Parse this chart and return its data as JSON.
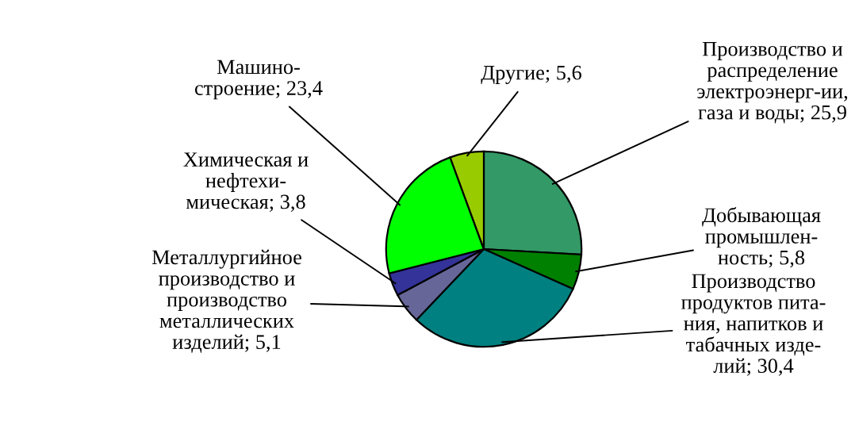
{
  "chart_data": {
    "type": "pie",
    "categories": [
      "Производство и\nраспределение\nэлектроэнерг-ии,\nгаза и воды",
      "Добывающая\nпромышлен-\nность",
      "Производство\nпродуктов пита-\nния, напитков и\nтабачных изде-\nлий",
      "Металлургийное\nпроизводство и\nпроизводство\nметаллических\nизделий",
      "Химическая и\nнефтехи-\nмическая",
      "Машино-\nстроение",
      "Другие"
    ],
    "values": [
      25.9,
      5.8,
      30.4,
      5.1,
      3.8,
      23.4,
      5.6
    ],
    "value_labels": [
      "25,9",
      "5,8",
      "30,4",
      "5,1",
      "3,8",
      "23,4",
      "5,6"
    ],
    "colors": [
      "#339966",
      "#008000",
      "#008080",
      "#666699",
      "#333399",
      "#00ff00",
      "#99cc00"
    ],
    "legend": false
  }
}
